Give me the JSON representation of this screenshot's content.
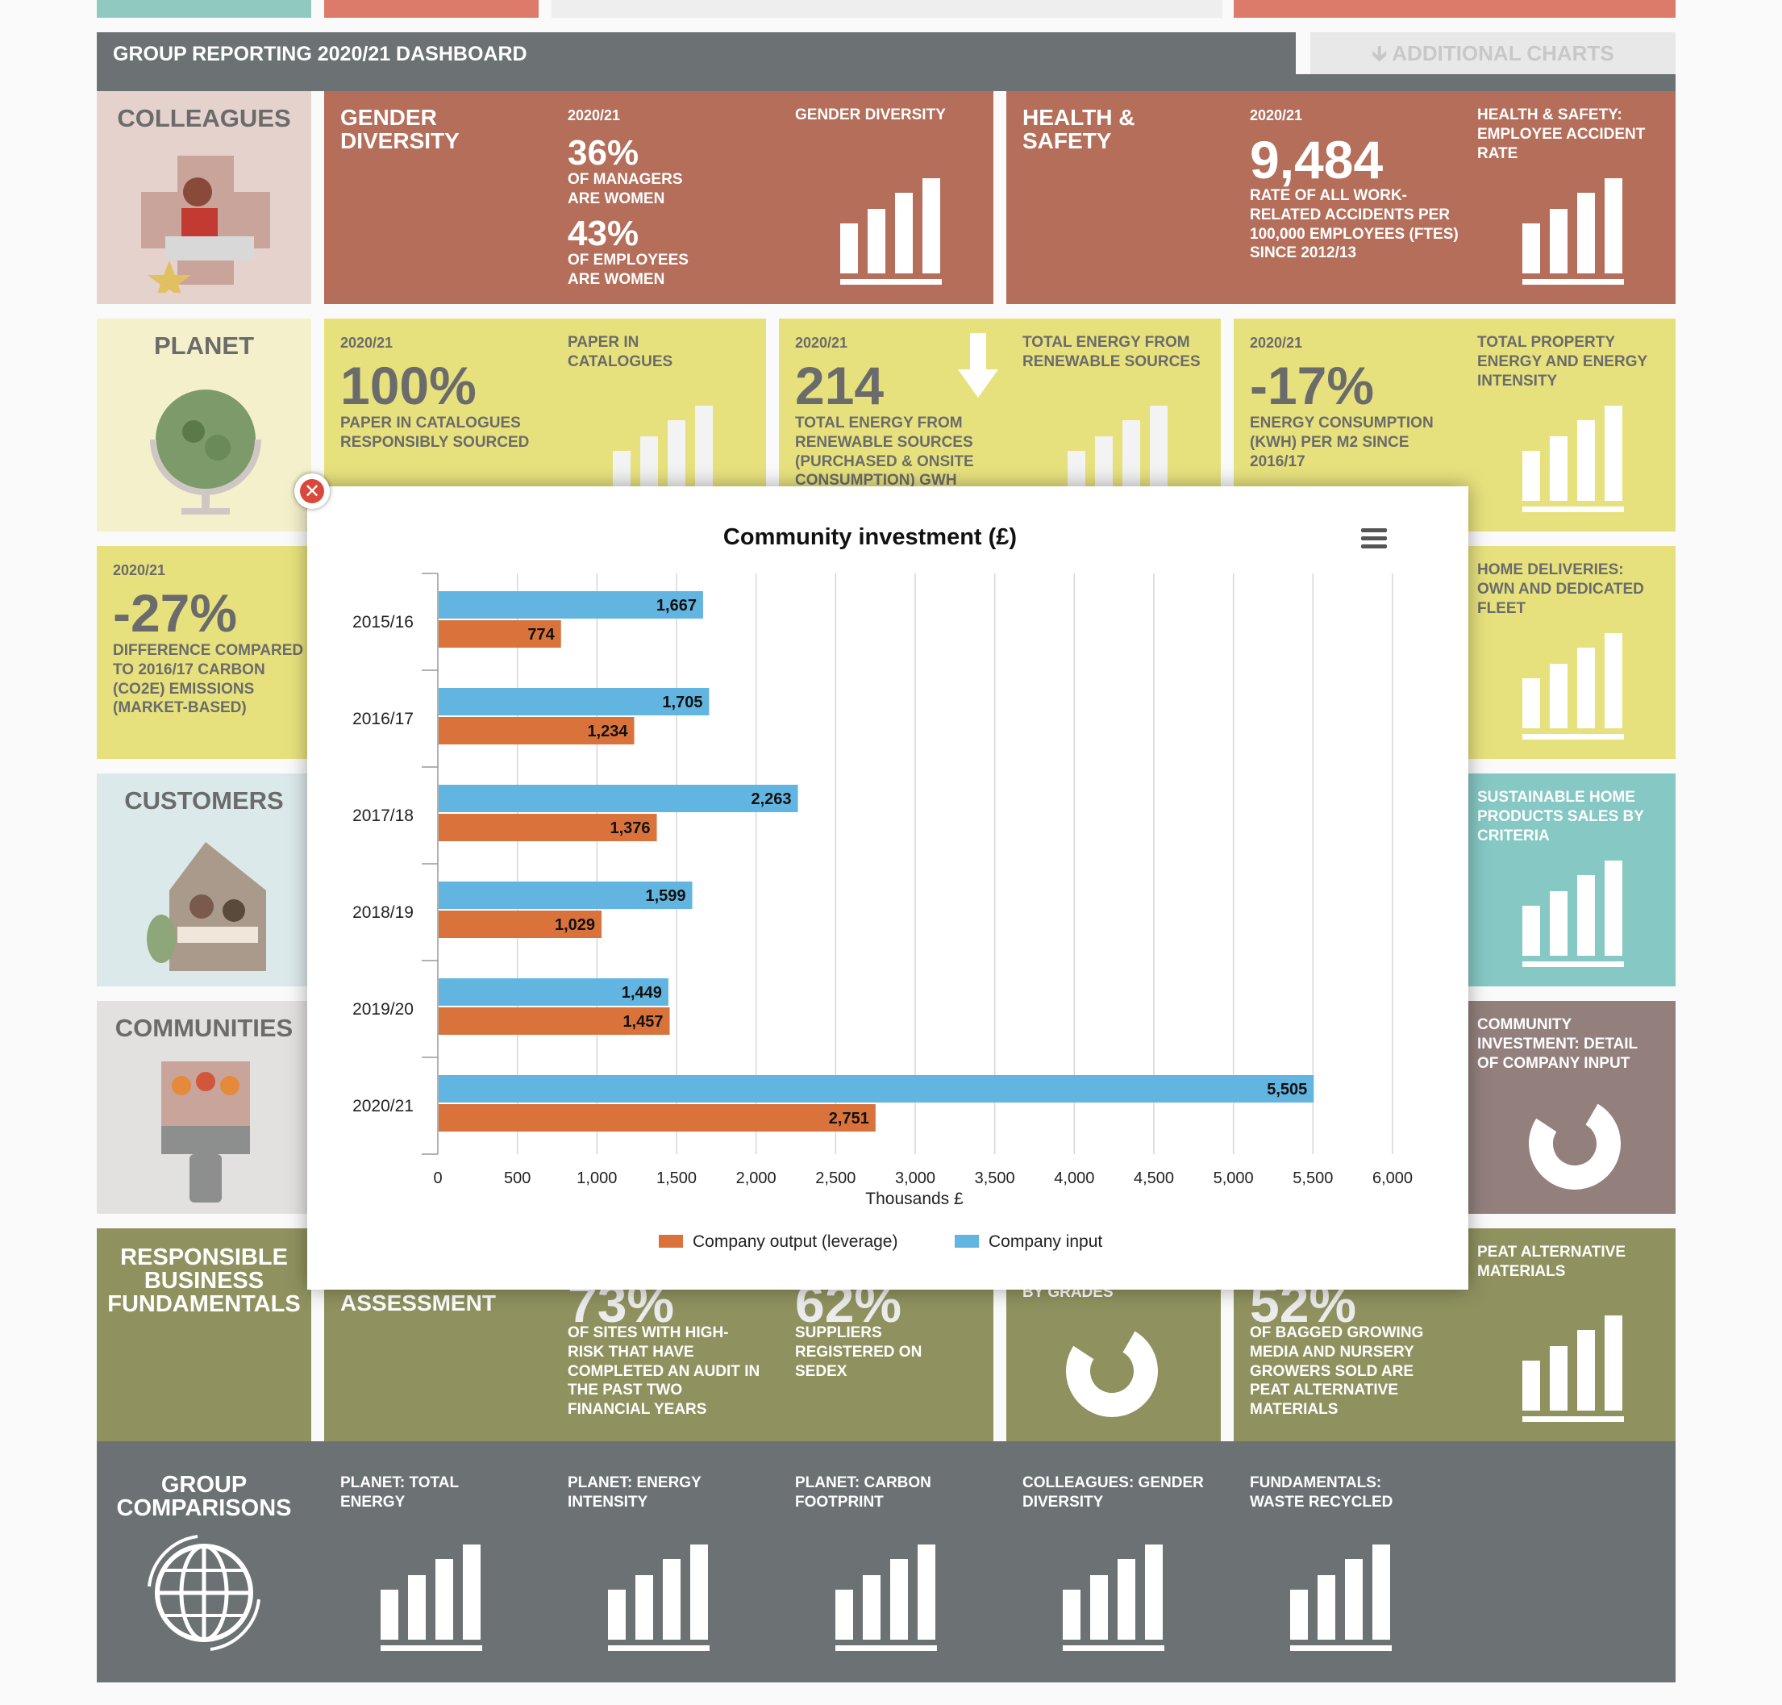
{
  "header": {
    "title": "GROUP REPORTING 2020/21 DASHBOARD",
    "additional_charts": "ADDITIONAL CHARTS",
    "additional_icon": "arrow-down-icon"
  },
  "colors": {
    "gray": "#6c7174",
    "terracotta": "#b46e5a",
    "yellow": "#e7e17d",
    "olive": "#8f925f",
    "teal": "#85c8c4",
    "mauve": "#93807d",
    "blue_series": "#62b5e0",
    "orange_series": "#d9733b"
  },
  "categories": {
    "colleagues": "COLLEAGUES",
    "planet": "PLANET",
    "customers": "CUSTOMERS",
    "communities": "COMMUNITIES",
    "fundamentals": "RESPONSIBLE BUSINESS FUNDAMENTALS",
    "group_comparisons": "GROUP COMPARISONS"
  },
  "tiles": {
    "gender": {
      "heading": "GENDER DIVERSITY",
      "year": "2020/21",
      "stat1": "36%",
      "stat1_label": "OF MANAGERS ARE WOMEN",
      "stat2": "43%",
      "stat2_label": "OF EMPLOYEES ARE WOMEN",
      "chart_label": "GENDER DIVERSITY"
    },
    "health": {
      "heading": "HEALTH & SAFETY",
      "year": "2020/21",
      "stat": "9,484",
      "stat_label": "RATE OF ALL WORK-RELATED ACCIDENTS PER 100,000 EMPLOYEES (FTES) SINCE 2012/13",
      "chart_label": "HEALTH & SAFETY: EMPLOYEE ACCIDENT RATE"
    },
    "paper": {
      "year": "2020/21",
      "stat": "100%",
      "stat_label": "PAPER IN CATALOGUES RESPONSIBLY SOURCED",
      "chart_label": "PAPER IN CATALOGUES"
    },
    "energy": {
      "year": "2020/21",
      "stat": "214",
      "stat_label": "TOTAL ENERGY FROM RENEWABLE SOURCES (PURCHASED & ONSITE CONSUMPTION) GWH",
      "chart_label": "TOTAL ENERGY FROM RENEWABLE SOURCES"
    },
    "property": {
      "year": "2020/21",
      "stat": "-17%",
      "stat_label": "ENERGY CONSUMPTION (KWH) PER M2 SINCE 2016/17",
      "chart_label": "TOTAL PROPERTY ENERGY AND ENERGY INTENSITY"
    },
    "carbon": {
      "year": "2020/21",
      "stat": "-27%",
      "stat_label": "DIFFERENCE COMPARED TO 2016/17 CARBON (CO2E) EMISSIONS (MARKET-BASED)"
    },
    "deliveries": {
      "chart_label": "HOME DELIVERIES: OWN AND DEDICATED FLEET"
    },
    "sustainable": {
      "chart_label": "SUSTAINABLE HOME PRODUCTS SALES BY CRITERIA"
    },
    "community_detail": {
      "chart_label": "COMMUNITY INVESTMENT: DETAIL OF COMPANY INPUT"
    },
    "assessment": {
      "label": "ASSESSMENT"
    },
    "audit": {
      "stat": "73%",
      "stat_label": "OF SITES WITH HIGH-RISK THAT HAVE COMPLETED AN AUDIT IN THE PAST TWO FINANCIAL YEARS"
    },
    "sedex": {
      "stat": "62%",
      "stat_label": "SUPPLIERS REGISTERED ON SEDEX"
    },
    "grades": {
      "label": "BY GRADES"
    },
    "peat": {
      "stat": "52%",
      "stat_label": "OF BAGGED GROWING MEDIA AND NURSERY GROWERS SOLD ARE PEAT ALTERNATIVE MATERIALS",
      "chart_label": "PEAT ALTERNATIVE MATERIALS"
    }
  },
  "comparisons": [
    {
      "label": "PLANET: TOTAL ENERGY"
    },
    {
      "label": "PLANET: ENERGY INTENSITY"
    },
    {
      "label": "PLANET: CARBON FOOTPRINT"
    },
    {
      "label": "COLLEAGUES: GENDER DIVERSITY"
    },
    {
      "label": "FUNDAMENTALS: WASTE RECYCLED"
    }
  ],
  "modal": {
    "close_icon": "close-icon",
    "menu_icon": "hamburger-menu-icon"
  },
  "chart_data": {
    "type": "bar",
    "orientation": "horizontal",
    "title": "Community investment (£)",
    "xlabel": "Thousands £",
    "ylabel": "",
    "categories": [
      "2015/16",
      "2016/17",
      "2017/18",
      "2018/19",
      "2019/20",
      "2020/21"
    ],
    "xlim": [
      0,
      6000
    ],
    "xticks": [
      "0",
      "500",
      "1,000",
      "1,500",
      "2,000",
      "2,500",
      "3,000",
      "3,500",
      "4,000",
      "4,500",
      "5,000",
      "5,500",
      "6,000"
    ],
    "grid": true,
    "legend_position": "bottom",
    "series": [
      {
        "name": "Company input",
        "color": "#62b5e0",
        "values": [
          1667,
          1705,
          2263,
          1599,
          1449,
          5505
        ],
        "labels": [
          "1,667",
          "1,705",
          "2,263",
          "1,599",
          "1,449",
          "5,505"
        ]
      },
      {
        "name": "Company output (leverage)",
        "color": "#d9733b",
        "values": [
          774,
          1234,
          1376,
          1029,
          1457,
          2751
        ],
        "labels": [
          "774",
          "1,234",
          "1,376",
          "1,029",
          "1,457",
          "2,751"
        ]
      }
    ],
    "legend_order": [
      "Company output (leverage)",
      "Company input"
    ]
  }
}
